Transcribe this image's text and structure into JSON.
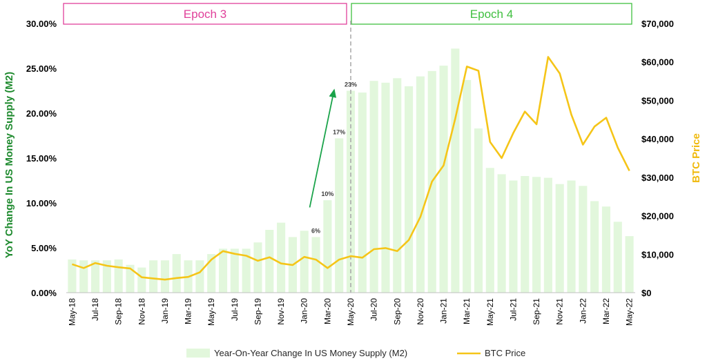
{
  "chart_data": {
    "type": "bar+line",
    "categories": [
      "May-18",
      "Jun-18",
      "Jul-18",
      "Aug-18",
      "Sep-18",
      "Oct-18",
      "Nov-18",
      "Dec-18",
      "Jan-19",
      "Feb-19",
      "Mar-19",
      "Apr-19",
      "May-19",
      "Jun-19",
      "Jul-19",
      "Aug-19",
      "Sep-19",
      "Oct-19",
      "Nov-19",
      "Dec-19",
      "Jan-20",
      "Feb-20",
      "Mar-20",
      "Apr-20",
      "May-20",
      "Jun-20",
      "Jul-20",
      "Aug-20",
      "Sep-20",
      "Oct-20",
      "Nov-20",
      "Dec-20",
      "Jan-21",
      "Feb-21",
      "Mar-21",
      "Apr-21",
      "May-21",
      "Jun-21",
      "Jul-21",
      "Aug-21",
      "Sep-21",
      "Oct-21",
      "Nov-21",
      "Dec-21",
      "Jan-22",
      "Feb-22",
      "Mar-22",
      "Apr-22",
      "May-22"
    ],
    "x_tick_labels": [
      "May-18",
      "Jul-18",
      "Sep-18",
      "Nov-18",
      "Jan-19",
      "Mar-19",
      "May-19",
      "Jul-19",
      "Sep-19",
      "Nov-19",
      "Jan-20",
      "Mar-20",
      "May-20",
      "Jul-20",
      "Sep-20",
      "Nov-20",
      "Jan-21",
      "Mar-21",
      "May-21",
      "Jul-21",
      "Sep-21",
      "Nov-21",
      "Jan-22",
      "Mar-22",
      "May-22"
    ],
    "series": [
      {
        "name": "Year-On-Year Change In US Money Supply (M2)",
        "kind": "bar",
        "axis": "left",
        "color": "#e2f7dc",
        "values": [
          3.7,
          3.6,
          3.6,
          3.6,
          3.7,
          3.1,
          2.8,
          3.6,
          3.6,
          4.3,
          3.6,
          3.6,
          4.3,
          4.9,
          4.9,
          4.9,
          5.6,
          7.0,
          7.8,
          6.2,
          6.9,
          6.2,
          10.3,
          17.2,
          22.5,
          22.3,
          23.6,
          23.4,
          23.9,
          23.0,
          24.1,
          24.7,
          25.3,
          27.2,
          23.7,
          18.3,
          13.9,
          13.2,
          12.5,
          13.0,
          12.9,
          12.8,
          12.1,
          12.5,
          11.9,
          10.2,
          9.6,
          7.9,
          6.3
        ]
      },
      {
        "name": "BTC Price",
        "kind": "line",
        "axis": "right",
        "color": "#f5c518",
        "values": [
          7400,
          6400,
          7700,
          7000,
          6600,
          6300,
          4000,
          3700,
          3400,
          3800,
          4100,
          5300,
          8600,
          10800,
          10100,
          9600,
          8300,
          9200,
          7600,
          7200,
          9300,
          8600,
          6400,
          8600,
          9500,
          9100,
          11300,
          11600,
          10800,
          13700,
          19700,
          28900,
          33100,
          45200,
          58800,
          57700,
          39200,
          35000,
          41500,
          47100,
          43800,
          61300,
          57000,
          46300,
          38500,
          43200,
          45500,
          37700,
          31700
        ]
      }
    ],
    "left_axis": {
      "title": "YoY Change In US Money Supply (M2)",
      "min": 0,
      "max": 30,
      "step": 5,
      "tick_labels": [
        "0.00%",
        "5.00%",
        "10.00%",
        "15.00%",
        "20.00%",
        "25.00%",
        "30.00%"
      ]
    },
    "right_axis": {
      "title": "BTC Price",
      "min": 0,
      "max": 70000,
      "step": 10000,
      "tick_labels": [
        "$0",
        "$10,000",
        "$20,000",
        "$30,000",
        "$40,000",
        "$50,000",
        "$60,000",
        "$70,000"
      ]
    },
    "data_labels": [
      {
        "category": "Feb-20",
        "text": "6%"
      },
      {
        "category": "Mar-20",
        "text": "10%"
      },
      {
        "category": "Apr-20",
        "text": "17%"
      },
      {
        "category": "May-20",
        "text": "23%"
      }
    ],
    "epochs": [
      {
        "label": "Epoch 3",
        "color": "#e0409a",
        "from": "May-18",
        "to": "May-20"
      },
      {
        "label": "Epoch 4",
        "color": "#3fbf3f",
        "from": "May-20",
        "to": "May-22"
      }
    ],
    "halving_marker": "May-20",
    "trend_arrow": {
      "from": "Feb-20",
      "to": "May-20",
      "color": "#1aa34a"
    },
    "legend_position": "bottom"
  }
}
